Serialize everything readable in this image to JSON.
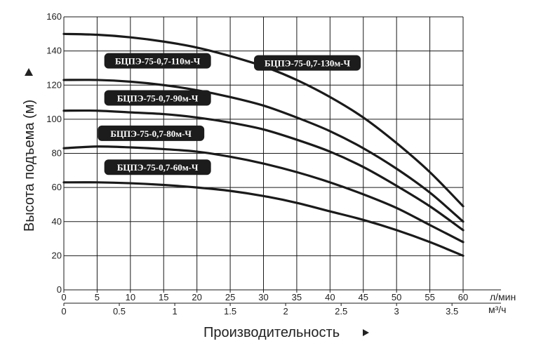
{
  "chart_data": {
    "type": "line",
    "xlabel": "Производительность",
    "ylabel": "Высота подъема (м)",
    "x_unit": "л/мин",
    "x2_unit": "м³/ч",
    "xlim": [
      0,
      60
    ],
    "ylim": [
      0,
      160
    ],
    "grid": true,
    "x_ticks": [
      0,
      5,
      10,
      15,
      20,
      25,
      30,
      35,
      40,
      45,
      50,
      55,
      60
    ],
    "y_ticks": [
      0,
      20,
      40,
      60,
      80,
      100,
      120,
      140,
      160
    ],
    "x2_ticks": [
      {
        "label": "0",
        "at": 0
      },
      {
        "label": "0.5",
        "at": 8.33
      },
      {
        "label": "1",
        "at": 16.67
      },
      {
        "label": "1.5",
        "at": 25
      },
      {
        "label": "2",
        "at": 33.33
      },
      {
        "label": "2.5",
        "at": 41.67
      },
      {
        "label": "3",
        "at": 50
      },
      {
        "label": "3.5",
        "at": 58.33
      }
    ],
    "series": [
      {
        "name": "БЦПЭ-75-0,7-130м-Ч",
        "x": [
          0,
          5,
          10,
          15,
          20,
          25,
          30,
          35,
          40,
          45,
          50,
          55,
          60
        ],
        "y": [
          150,
          149.5,
          148,
          145.5,
          142,
          137,
          131,
          123,
          113,
          101,
          86,
          69,
          49
        ]
      },
      {
        "name": "БЦПЭ-75-0,7-110м-Ч",
        "x": [
          0,
          5,
          10,
          15,
          20,
          25,
          30,
          35,
          40,
          45,
          50,
          55,
          60
        ],
        "y": [
          123,
          123,
          122,
          120,
          117,
          113,
          108,
          101,
          93,
          83,
          71,
          57,
          40
        ]
      },
      {
        "name": "БЦПЭ-75-0,7-90м-Ч",
        "x": [
          0,
          5,
          10,
          15,
          20,
          25,
          30,
          35,
          40,
          45,
          50,
          55,
          60
        ],
        "y": [
          105,
          105,
          104,
          103,
          101,
          98,
          94,
          88,
          81,
          72,
          61,
          49,
          35
        ]
      },
      {
        "name": "БЦПЭ-75-0,7-80м-Ч",
        "x": [
          0,
          5,
          10,
          15,
          20,
          25,
          30,
          35,
          40,
          45,
          50,
          55,
          60
        ],
        "y": [
          83,
          84,
          83.5,
          82.5,
          81,
          78,
          74,
          69,
          63,
          56,
          48,
          38,
          28
        ]
      },
      {
        "name": "БЦПЭ-75-0,7-60м-Ч",
        "x": [
          0,
          5,
          10,
          15,
          20,
          25,
          30,
          35,
          40,
          45,
          50,
          55,
          60
        ],
        "y": [
          63,
          63,
          62.5,
          61.5,
          60,
          58,
          55,
          51,
          46,
          41,
          35,
          28,
          20
        ]
      }
    ]
  }
}
